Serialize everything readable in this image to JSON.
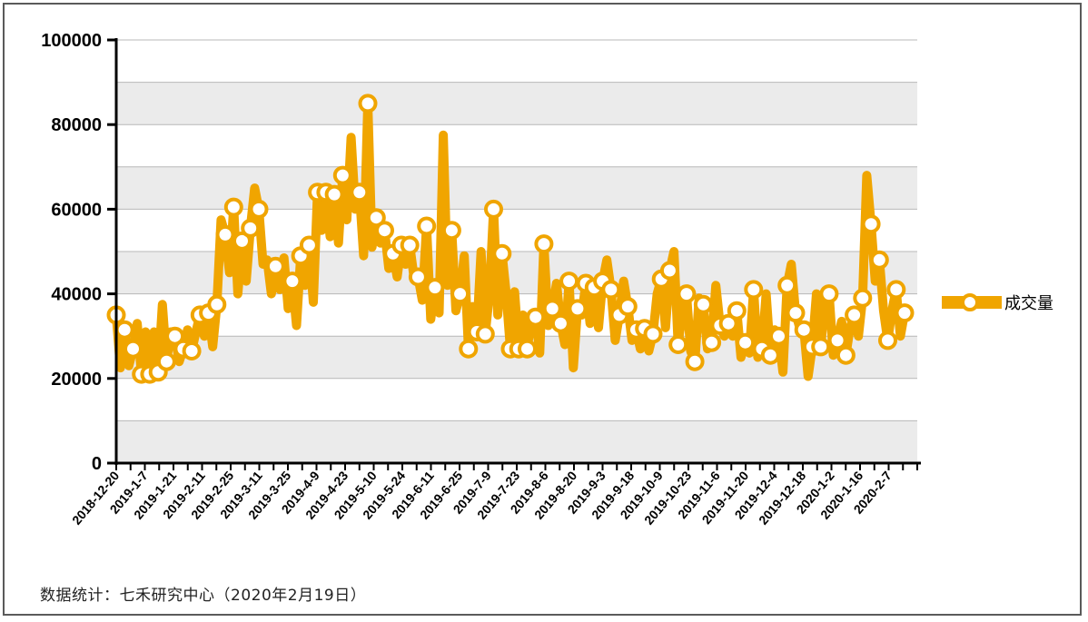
{
  "chart_data": {
    "type": "line",
    "title": "",
    "xlabel": "",
    "ylabel": "",
    "ylim": [
      0,
      100000
    ],
    "yticks": [
      0,
      20000,
      40000,
      60000,
      80000,
      100000
    ],
    "grid": true,
    "legend_position": "right",
    "x_tick_labels": [
      "2018-12-20",
      "2019-1-7",
      "2019-1-21",
      "2019-2-11",
      "2019-2-25",
      "2019-3-11",
      "2019-3-25",
      "2019-4-9",
      "2019-4-23",
      "2019-5-10",
      "2019-5-24",
      "2019-6-11",
      "2019-6-25",
      "2019-7-9",
      "2019-7-23",
      "2019-8-6",
      "2019-8-20",
      "2019-9-3",
      "2019-9-18",
      "2019-10-9",
      "2019-10-23",
      "2019-11-6",
      "2019-11-20",
      "2019-12-4",
      "2019-12-18",
      "2020-1-2",
      "2020-1-16",
      "2020-2-7"
    ],
    "series": [
      {
        "name": "成交量",
        "color": "#f0a500",
        "values": [
          35000,
          22500,
          31500,
          23000,
          27000,
          33000,
          21000,
          31000,
          21000,
          31000,
          21500,
          37500,
          24000,
          31000,
          30000,
          24000,
          27000,
          31500,
          26500,
          31000,
          35000,
          30000,
          35500,
          27500,
          37500,
          57500,
          54000,
          45000,
          60500,
          40000,
          52500,
          43000,
          55500,
          65000,
          60000,
          47000,
          48000,
          40000,
          46500,
          41000,
          48500,
          36500,
          43000,
          32500,
          49000,
          42000,
          51500,
          38000,
          64000,
          55000,
          64000,
          53500,
          63500,
          52000,
          68000,
          57500,
          77000,
          60000,
          64000,
          49000,
          85000,
          51000,
          58000,
          52000,
          55000,
          46000,
          49500,
          44000,
          51500,
          47000,
          51500,
          44000,
          44000,
          38500,
          56000,
          34000,
          41500,
          35500,
          77500,
          42000,
          55000,
          36000,
          40000,
          49000,
          27000,
          37000,
          31000,
          50000,
          30500,
          40000,
          60000,
          35000,
          49500,
          40000,
          27000,
          40500,
          27000,
          35000,
          27000,
          34000,
          34500,
          26000,
          51800,
          32500,
          36500,
          42500,
          33000,
          28000,
          43000,
          22500,
          36500,
          35000,
          42500,
          33000,
          41500,
          32000,
          43000,
          48000,
          41000,
          29000,
          35000,
          43000,
          37000,
          29000,
          31500,
          27000,
          31800,
          26500,
          30500,
          40000,
          43500,
          32000,
          45500,
          50000,
          28000,
          36000,
          40000,
          26500,
          24000,
          39000,
          37500,
          27000,
          28500,
          42000,
          32500,
          30000,
          33000,
          30000,
          36000,
          25000,
          28500,
          26000,
          41000,
          25000,
          27000,
          40000,
          25500,
          31500,
          30000,
          21500,
          42000,
          47000,
          35500,
          32000,
          31500,
          20500,
          27500,
          40000,
          27500,
          38000,
          40000,
          25500,
          29000,
          33500,
          25500,
          32000,
          35000,
          30000,
          39000,
          68000,
          56500,
          43000,
          48000,
          36000,
          29000,
          36000,
          41000,
          30000,
          35500
        ]
      }
    ],
    "marker_indices": [
      0,
      2,
      4,
      6,
      8,
      10,
      12,
      14,
      16,
      18,
      20,
      22,
      24,
      26,
      28,
      30,
      32,
      34,
      38,
      42,
      44,
      46,
      48,
      50,
      52,
      54,
      58,
      60,
      62,
      64,
      66,
      68,
      70,
      72,
      74,
      76,
      80,
      82,
      84,
      86,
      88,
      90,
      92,
      94,
      96,
      98,
      100,
      102,
      104,
      106,
      108,
      110,
      112,
      114,
      116,
      118,
      120,
      122,
      124,
      126,
      128,
      130,
      132,
      134,
      136,
      138,
      140,
      142,
      144,
      146,
      148,
      150,
      152,
      154,
      156,
      158,
      160,
      162,
      164,
      166,
      168,
      170,
      172,
      174,
      176,
      178,
      180,
      182,
      184,
      186,
      188,
      190,
      194
    ]
  },
  "footer": {
    "source": "数据统计：七禾研究中心（2020年2月19日）"
  }
}
